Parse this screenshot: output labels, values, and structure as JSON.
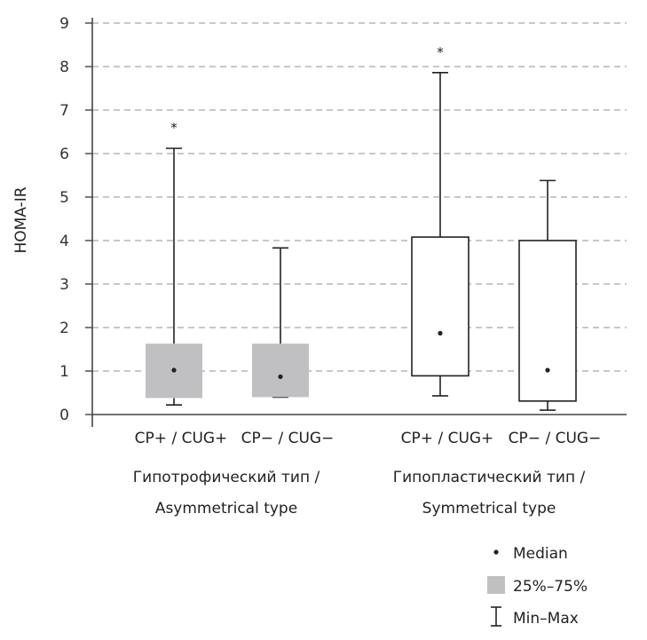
{
  "chart_data": {
    "type": "boxplot",
    "ylabel": "HOMA-IR",
    "ylim": [
      0,
      9
    ],
    "yticks": [
      "0",
      "1",
      "2",
      "3",
      "4",
      "5",
      "6",
      "7",
      "8",
      "9"
    ],
    "grid": true,
    "groups": [
      {
        "label_line1": "Гипотрофический тип /",
        "label_line2": "Asymmetrical type"
      },
      {
        "label_line1": "Гипопластический тип /",
        "label_line2": "Symmetrical type"
      }
    ],
    "boxes": [
      {
        "label": "CP+ / CUG+",
        "group": 0,
        "min": 0.22,
        "q1": 0.38,
        "median": 1.02,
        "q3": 1.63,
        "max": 6.12,
        "fill": "#c0c0c2",
        "marker": "*"
      },
      {
        "label": "CP− / CUG−",
        "group": 0,
        "min": 0.4,
        "q1": 0.4,
        "median": 0.87,
        "q3": 1.63,
        "max": 3.83,
        "fill": "#c0c0c2",
        "marker": ""
      },
      {
        "label": "CP+ / CUG+",
        "group": 1,
        "min": 0.43,
        "q1": 0.89,
        "median": 1.87,
        "q3": 4.08,
        "max": 7.86,
        "fill": "#ffffff",
        "marker": "*"
      },
      {
        "label": "CP− / CUG−",
        "group": 1,
        "min": 0.1,
        "q1": 0.31,
        "median": 1.02,
        "q3": 4.0,
        "max": 5.38,
        "fill": "#ffffff",
        "marker": ""
      }
    ],
    "legend": {
      "median": "Median",
      "iqr": "25%–75%",
      "range": "Min–Max"
    }
  }
}
